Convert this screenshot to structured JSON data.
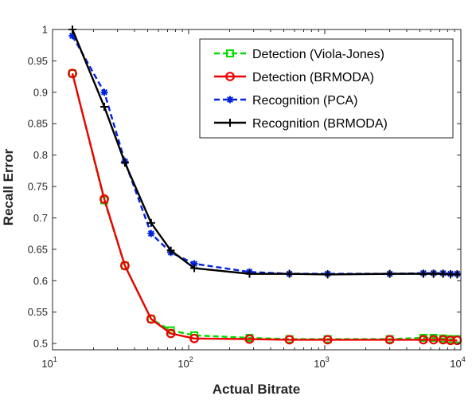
{
  "chart_data": {
    "type": "line",
    "xlabel": "Actual Bitrate",
    "ylabel": "Recall Error",
    "xscale": "log",
    "xlim": [
      10,
      10000
    ],
    "ylim": [
      0.49,
      1.0
    ],
    "x_ticks": [
      {
        "value": 10,
        "base": "10",
        "exp": "1"
      },
      {
        "value": 100,
        "base": "10",
        "exp": "2"
      },
      {
        "value": 1000,
        "base": "10",
        "exp": "3"
      },
      {
        "value": 10000,
        "base": "10",
        "exp": "4"
      }
    ],
    "y_ticks": [
      {
        "value": 0.5,
        "label": "0.5"
      },
      {
        "value": 0.55,
        "label": "0.55"
      },
      {
        "value": 0.6,
        "label": "0.6"
      },
      {
        "value": 0.65,
        "label": "0.65"
      },
      {
        "value": 0.7,
        "label": "0.7"
      },
      {
        "value": 0.75,
        "label": "0.75"
      },
      {
        "value": 0.8,
        "label": "0.8"
      },
      {
        "value": 0.85,
        "label": "0.85"
      },
      {
        "value": 0.9,
        "label": "0.9"
      },
      {
        "value": 0.95,
        "label": "0.95"
      },
      {
        "value": 1.0,
        "label": "1"
      }
    ],
    "grid": false,
    "legend_position": "top-right",
    "series": [
      {
        "name": "Detection (Viola-Jones)",
        "color": "#00dd00",
        "dash": "dashed",
        "marker": "square",
        "points": [
          [
            14,
            0.93
          ],
          [
            24,
            0.728
          ],
          [
            34,
            0.624
          ],
          [
            53,
            0.539
          ],
          [
            74,
            0.521
          ],
          [
            110,
            0.513
          ],
          [
            280,
            0.509
          ],
          [
            550,
            0.507
          ],
          [
            1050,
            0.507
          ],
          [
            3000,
            0.507
          ],
          [
            5300,
            0.509
          ],
          [
            6300,
            0.509
          ],
          [
            7400,
            0.508
          ],
          [
            8400,
            0.507
          ],
          [
            9400,
            0.507
          ]
        ]
      },
      {
        "name": "Detection (BRMODA)",
        "color": "#ee0000",
        "dash": "solid",
        "marker": "circle",
        "points": [
          [
            14,
            0.93
          ],
          [
            24,
            0.73
          ],
          [
            34,
            0.624
          ],
          [
            53,
            0.539
          ],
          [
            74,
            0.516
          ],
          [
            110,
            0.508
          ],
          [
            280,
            0.507
          ],
          [
            550,
            0.506
          ],
          [
            1050,
            0.506
          ],
          [
            3000,
            0.506
          ],
          [
            5300,
            0.506
          ],
          [
            6300,
            0.506
          ],
          [
            7400,
            0.506
          ],
          [
            8400,
            0.505
          ],
          [
            9400,
            0.505
          ]
        ]
      },
      {
        "name": "Recognition (PCA)",
        "color": "#0022dd",
        "dash": "dashed",
        "marker": "asterisk",
        "points": [
          [
            14,
            0.99
          ],
          [
            24,
            0.9
          ],
          [
            34,
            0.79
          ],
          [
            53,
            0.675
          ],
          [
            74,
            0.645
          ],
          [
            110,
            0.627
          ],
          [
            280,
            0.614
          ],
          [
            550,
            0.611
          ],
          [
            1050,
            0.611
          ],
          [
            3000,
            0.611
          ],
          [
            5300,
            0.612
          ],
          [
            6300,
            0.612
          ],
          [
            7400,
            0.612
          ],
          [
            8400,
            0.611
          ],
          [
            9400,
            0.611
          ]
        ]
      },
      {
        "name": "Recognition (BRMODA)",
        "color": "#000000",
        "dash": "solid",
        "marker": "plus",
        "points": [
          [
            14,
            1.0
          ],
          [
            24,
            0.877
          ],
          [
            34,
            0.788
          ],
          [
            53,
            0.692
          ],
          [
            74,
            0.648
          ],
          [
            110,
            0.62
          ],
          [
            280,
            0.611
          ],
          [
            550,
            0.611
          ],
          [
            1050,
            0.61
          ],
          [
            3000,
            0.611
          ],
          [
            5300,
            0.611
          ],
          [
            6300,
            0.611
          ],
          [
            7400,
            0.611
          ],
          [
            8400,
            0.61
          ],
          [
            9400,
            0.61
          ]
        ]
      }
    ]
  }
}
